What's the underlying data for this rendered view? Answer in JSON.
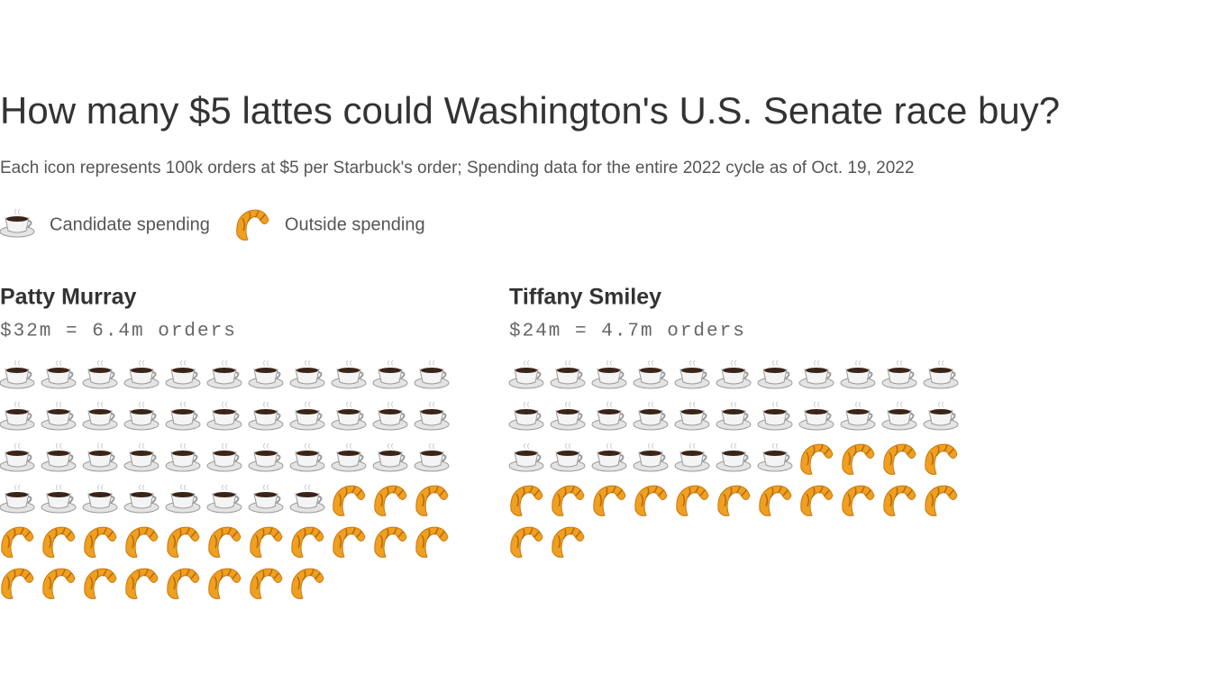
{
  "chart_data": {
    "type": "pictogram",
    "title": "How many $5 lattes could Washington's U.S. Senate race buy?",
    "subtitle": "Each icon represents 100k orders at $5 per Starbuck's order; Spending data for the entire 2022 cycle as of Oct. 19, 2022",
    "series": [
      {
        "name": "Candidate spending"
      },
      {
        "name": "Outside spending"
      }
    ],
    "panels": [
      {
        "title": "Patty Murray",
        "label": "$32m = 6.4m orders",
        "values": [
          41,
          22
        ]
      },
      {
        "title": "Tiffany Smiley",
        "label": "$24m = 4.7m orders",
        "values": [
          29,
          17
        ]
      }
    ]
  }
}
